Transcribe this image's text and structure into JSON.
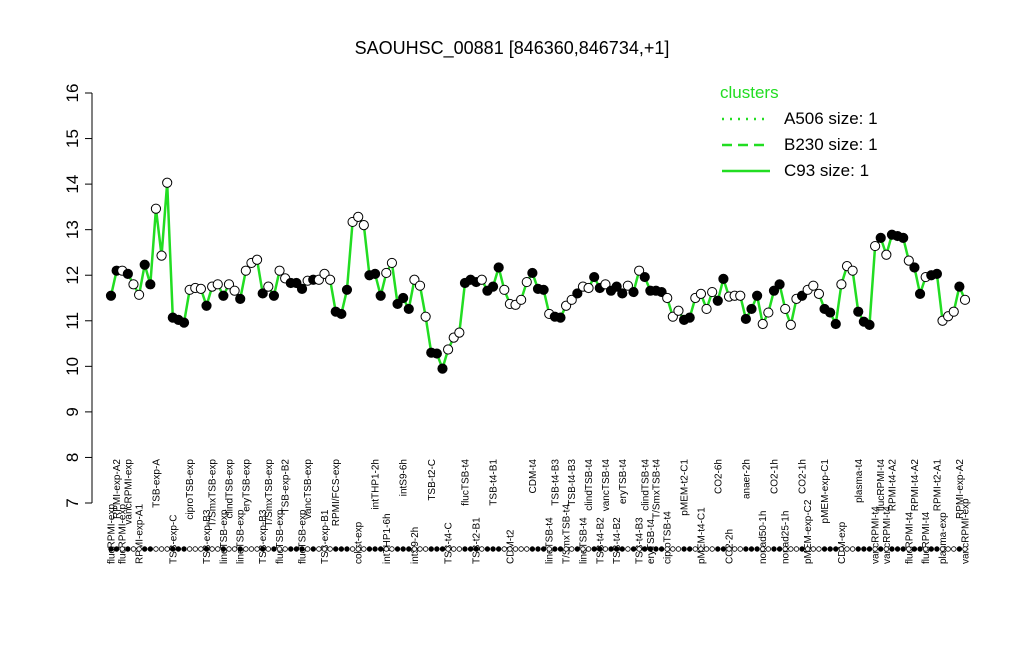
{
  "chart_data": {
    "type": "line",
    "title": "SAOUHSC_00881 [846360,846734,+1]",
    "ylim": [
      7,
      16
    ],
    "yticks": [
      7,
      8,
      9,
      10,
      11,
      12,
      13,
      14,
      15,
      16
    ],
    "categories": [
      "flucRPMI-exp",
      "RPMI-exp-A2",
      "flucRPMI-exp",
      "vancRPMI-exp",
      null,
      "RPMI-exp-A1",
      null,
      null,
      "TSB-exp-A",
      null,
      null,
      "TSB-exp-C",
      null,
      null,
      "ciproTSB-exp",
      null,
      null,
      "TSB-exp-B3",
      "T/SmxTSB-exp",
      null,
      "lineTSB-exp",
      "clindTSB-exp",
      null,
      "lineTSB-exp",
      "eryTSB-exp",
      null,
      null,
      "TSB-exp-B3",
      "T/SmxTSB-exp",
      null,
      "flucTSB-exp",
      "TSB-exp-B2",
      null,
      null,
      "flucTSB-exp",
      "vancTSB-exp",
      null,
      null,
      "TSB-exp-B1",
      null,
      "RPMI/FCS-exp",
      null,
      null,
      null,
      "colist-exp",
      null,
      null,
      "intTHP1-2h",
      null,
      "intTHP1-6h",
      null,
      null,
      "intS9-6h",
      null,
      "intS9-2h",
      null,
      null,
      "TSB-t2-C",
      null,
      null,
      "TSB-t4-C",
      null,
      null,
      "flucTSB-t4",
      null,
      "TSB-t2-B1",
      null,
      null,
      "TSB-t4-B1",
      null,
      null,
      "CDM-t2",
      null,
      null,
      null,
      "CDM-t4",
      null,
      null,
      "lineTSB-t4",
      "TSB-t4-B3",
      null,
      "T/SmxTSB-t4",
      "TSB-t4-B3",
      null,
      "lineTSB-t4",
      "clindTSB-t4",
      null,
      "TSB-t4-B2",
      "vancTSB-t4",
      null,
      "TSB-t4-B2",
      "eryTSB-t4",
      null,
      null,
      "TSB-t4-B3",
      "clindTSB-t4",
      "eryTSB-t4",
      "T/SmxTSB-t4",
      null,
      "ciproTSB-t4",
      null,
      null,
      "pMEM-t2-C1",
      null,
      null,
      "pMEM-t4-C1",
      null,
      null,
      "CO2-6h",
      null,
      "CO2-2h",
      null,
      null,
      "anaer-2h",
      null,
      null,
      "nonad50-1h",
      null,
      "CO2-1h",
      null,
      "nonad25-1h",
      null,
      null,
      "CO2-1h",
      "pMEM-exp-C2",
      null,
      null,
      "pMEM-exp-C1",
      null,
      null,
      "CDM-exp",
      null,
      null,
      "plasma-t4",
      null,
      null,
      "vancRPMI-t4",
      "flucRPMI-t4",
      "vancRPMI-t4",
      "RPMI-t4-A2",
      null,
      null,
      "flucRPMI-t4",
      "RPMI-t4-A2",
      null,
      "flucRPMI-t4",
      null,
      "RPMI-t2-A1",
      "plasma-exp",
      null,
      null,
      "RPMI-exp-A2",
      "vancRPMI-exp"
    ],
    "series": [
      {
        "color": "#22dd22",
        "values": [
          11.55,
          12.1,
          12.1,
          12.03,
          11.8,
          11.57,
          12.23,
          11.8,
          13.46,
          12.43,
          14.03,
          11.07,
          11.02,
          10.96,
          11.68,
          11.72,
          11.7,
          11.33,
          11.75,
          11.8,
          11.55,
          11.8,
          11.66,
          11.48,
          12.1,
          12.27,
          12.34,
          11.6,
          11.75,
          11.55,
          12.1,
          11.93,
          11.83,
          11.83,
          11.7,
          11.88,
          11.9,
          11.9,
          12.03,
          11.9,
          11.2,
          11.15,
          11.68,
          13.17,
          13.28,
          13.1,
          12.0,
          12.03,
          11.55,
          12.05,
          12.27,
          11.37,
          11.5,
          11.26,
          11.9,
          11.77,
          11.09,
          10.3,
          10.28,
          9.95,
          10.37,
          10.63,
          10.74,
          11.83,
          11.9,
          11.85,
          11.9,
          11.66,
          11.75,
          12.17,
          11.68,
          11.37,
          11.35,
          11.46,
          11.85,
          12.05,
          11.7,
          11.68,
          11.15,
          11.09,
          11.07,
          11.33,
          11.46,
          11.6,
          11.75,
          11.72,
          11.96,
          11.72,
          11.8,
          11.66,
          11.75,
          11.6,
          11.77,
          11.63,
          12.1,
          11.96,
          11.66,
          11.66,
          11.63,
          11.5,
          11.09,
          11.22,
          11.02,
          11.07,
          11.5,
          11.59,
          11.26,
          11.63,
          11.44,
          11.92,
          11.53,
          11.55,
          11.55,
          11.04,
          11.26,
          11.55,
          10.93,
          11.18,
          11.66,
          11.8,
          11.26,
          10.91,
          11.48,
          11.55,
          11.68,
          11.77,
          11.59,
          11.26,
          11.18,
          10.93,
          11.8,
          12.2,
          12.1,
          11.2,
          10.98,
          10.91,
          12.64,
          12.82,
          12.45,
          12.89,
          12.86,
          12.82,
          12.32,
          12.17,
          11.59,
          11.96,
          12.0,
          12.03,
          11.0,
          11.1,
          11.2,
          11.75,
          11.46
        ],
        "filled": [
          true,
          true,
          false,
          true,
          false,
          false,
          true,
          true,
          false,
          false,
          false,
          true,
          true,
          true,
          false,
          false,
          false,
          true,
          false,
          false,
          true,
          false,
          false,
          true,
          false,
          false,
          false,
          true,
          false,
          true,
          false,
          false,
          true,
          true,
          true,
          false,
          true,
          false,
          false,
          false,
          true,
          true,
          true,
          false,
          false,
          false,
          true,
          true,
          true,
          false,
          false,
          true,
          true,
          true,
          false,
          false,
          false,
          true,
          true,
          true,
          false,
          false,
          false,
          true,
          true,
          true,
          false,
          true,
          true,
          true,
          false,
          false,
          false,
          false,
          false,
          true,
          true,
          true,
          false,
          true,
          true,
          false,
          false,
          true,
          false,
          false,
          true,
          true,
          false,
          true,
          true,
          true,
          false,
          true,
          false,
          true,
          true,
          true,
          true,
          false,
          false,
          false,
          true,
          true,
          false,
          false,
          false,
          false,
          true,
          true,
          false,
          false,
          false,
          true,
          true,
          true,
          false,
          false,
          true,
          true,
          false,
          false,
          false,
          true,
          false,
          false,
          false,
          true,
          true,
          true,
          false,
          false,
          false,
          true,
          true,
          true,
          false,
          true,
          false,
          true,
          true,
          true,
          false,
          true,
          true,
          false,
          true,
          true,
          false,
          false,
          false,
          true,
          false
        ]
      }
    ],
    "legend": {
      "title": "clusters",
      "color": "#22dd22",
      "entries": [
        {
          "name": "A506 size: 1",
          "dash": "dotted"
        },
        {
          "name": "B230 size: 1",
          "dash": "dashed"
        },
        {
          "name": "C93 size: 1",
          "dash": "solid"
        }
      ]
    }
  }
}
